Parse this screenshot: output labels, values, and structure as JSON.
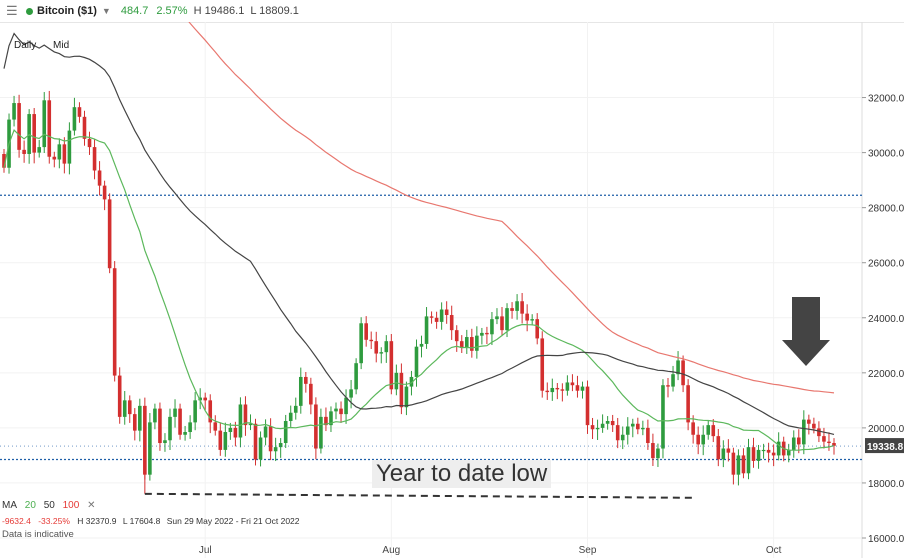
{
  "header": {
    "menu_icon": "menu-icon",
    "status_color": "#2e9b3e",
    "symbol": "Bitcoin ($1)",
    "dropdown_icon": "caret-down-icon",
    "change": "484.7",
    "change_pct": "2.57%",
    "high": "H 19486.1",
    "low": "L 18809.1"
  },
  "tags": {
    "interval": "Daily",
    "price_type": "Mid"
  },
  "legend": {
    "ma_label": "MA",
    "p1": "20",
    "p2": "50",
    "p3": "100",
    "close_icon": "close-icon"
  },
  "stats": {
    "change": "-9632.4",
    "change_pct": "-33.25%",
    "high": "H 32370.9",
    "low": "L 17604.8",
    "range": "Sun 29 May 2022 - Fri 21 Oct 2022"
  },
  "data_note": "Data is indicative",
  "annotation": "Year to date low",
  "chart_data": {
    "type": "candlestick",
    "y_axis": {
      "ylim": [
        15600,
        33800
      ],
      "ticks": [
        "32000.0",
        "30000.0",
        "28000.0",
        "26000.0",
        "24000.0",
        "22000.0",
        "20000.0",
        "18000.0",
        "16000.0"
      ]
    },
    "x_axis": {
      "ticks": [
        "Jul",
        "Aug",
        "Sep",
        "Oct"
      ]
    },
    "current_price_label": "19338.8",
    "current_price": 19338.8,
    "horizontal_lines": [
      28450,
      18850
    ],
    "ytd_low": 17604.8,
    "colors": {
      "up": "#2e9b3e",
      "down": "#d32f2f",
      "ma20": "#5cb85c",
      "ma50": "#444444",
      "ma100": "#e8776f"
    },
    "closes": [
      29450,
      31200,
      31800,
      30100,
      29950,
      31400,
      30000,
      30200,
      31900,
      29850,
      29750,
      30300,
      29600,
      30800,
      31650,
      31300,
      30500,
      30200,
      29350,
      28800,
      28300,
      25800,
      21900,
      20400,
      21000,
      20500,
      19900,
      20800,
      18300,
      20200,
      20700,
      19450,
      19550,
      20400,
      20700,
      19750,
      19850,
      20200,
      21000,
      21100,
      21000,
      20200,
      19900,
      19200,
      19850,
      20000,
      19650,
      20850,
      20100,
      20150,
      18850,
      19650,
      20050,
      19150,
      19300,
      19450,
      20250,
      20550,
      20800,
      21850,
      21600,
      20850,
      19250,
      20400,
      20100,
      20600,
      20700,
      20500,
      21100,
      21400,
      22350,
      23800,
      23200,
      23150,
      22700,
      22750,
      23150,
      21400,
      22000,
      20750,
      21500,
      21850,
      22950,
      23050,
      24050,
      24000,
      23850,
      24300,
      24100,
      23550,
      23150,
      22900,
      23300,
      22800,
      23350,
      23450,
      23400,
      23950,
      24050,
      23550,
      24350,
      24250,
      24600,
      24150,
      23900,
      23950,
      23250,
      21350,
      21300,
      21450,
      21400,
      21350,
      21650,
      21550,
      21350,
      21500,
      20100,
      19950,
      20000,
      20150,
      20250,
      20100,
      19550,
      19750,
      20050,
      20150,
      19950,
      20000,
      19450,
      18900,
      19250,
      21550,
      21500,
      21950,
      22450,
      21550,
      20200,
      19750,
      19400,
      19750,
      20100,
      19700,
      18860,
      19250,
      19100,
      18300,
      19000,
      18350,
      19300,
      18800,
      19200,
      19200,
      19100,
      19000,
      19500,
      19000,
      19200,
      19650,
      19400,
      20300,
      20150,
      19980,
      19700,
      19500,
      19450,
      19350
    ]
  }
}
